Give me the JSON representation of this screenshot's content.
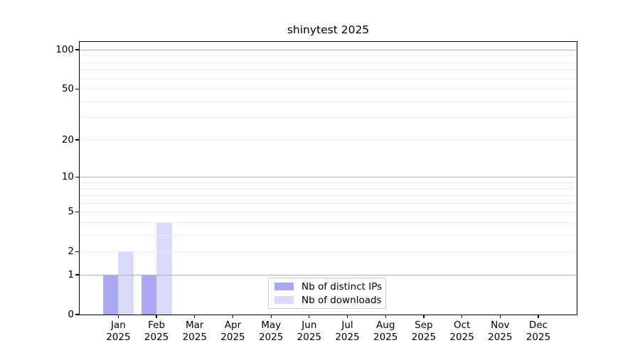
{
  "chart_data": {
    "type": "bar",
    "title": "shinytest 2025",
    "categories": [
      "Jan 2025",
      "Feb 2025",
      "Mar 2025",
      "Apr 2025",
      "May 2025",
      "Jun 2025",
      "Jul 2025",
      "Aug 2025",
      "Sep 2025",
      "Oct 2025",
      "Nov 2025",
      "Dec 2025"
    ],
    "months": [
      "Jan",
      "Feb",
      "Mar",
      "Apr",
      "May",
      "Jun",
      "Jul",
      "Aug",
      "Sep",
      "Oct",
      "Nov",
      "Dec"
    ],
    "year": "2025",
    "series": [
      {
        "name": "Nb of distinct IPs",
        "color": "#a9a9f1",
        "values": [
          1,
          1,
          0,
          0,
          0,
          0,
          0,
          0,
          0,
          0,
          0,
          0
        ]
      },
      {
        "name": "Nb of downloads",
        "color": "#dadaf9",
        "values": [
          2,
          4,
          0,
          0,
          0,
          0,
          0,
          0,
          0,
          0,
          0,
          0
        ]
      }
    ],
    "xlabel": "",
    "ylabel": "",
    "y_axis": {
      "scale": "log1p",
      "tick_values": [
        0,
        1,
        2,
        5,
        10,
        20,
        50,
        100
      ],
      "tick_labels": [
        "0",
        "1",
        "2",
        "5",
        "10",
        "20",
        "50",
        "100"
      ],
      "major_gridlines": [
        1,
        10,
        100
      ],
      "minor_gridlines": [
        2,
        3,
        4,
        5,
        6,
        7,
        8,
        9,
        20,
        30,
        40,
        50,
        60,
        70,
        80,
        90
      ],
      "ylim_top_value": 115
    },
    "legend": {
      "position": "lower-center-inside",
      "entries": [
        "Nb of distinct IPs",
        "Nb of downloads"
      ]
    },
    "grid": "horizontal",
    "styles": {
      "background": "#ffffff",
      "bar_color_distinct_ips": "#a9a9f1",
      "bar_color_downloads": "#dadaf9",
      "major_grid_color": "#b0b0b0",
      "minor_grid_color": "#eaeaea",
      "axis_color": "#000000",
      "text_color": "#000000",
      "legend_border_color": "#c9c9c9"
    }
  }
}
